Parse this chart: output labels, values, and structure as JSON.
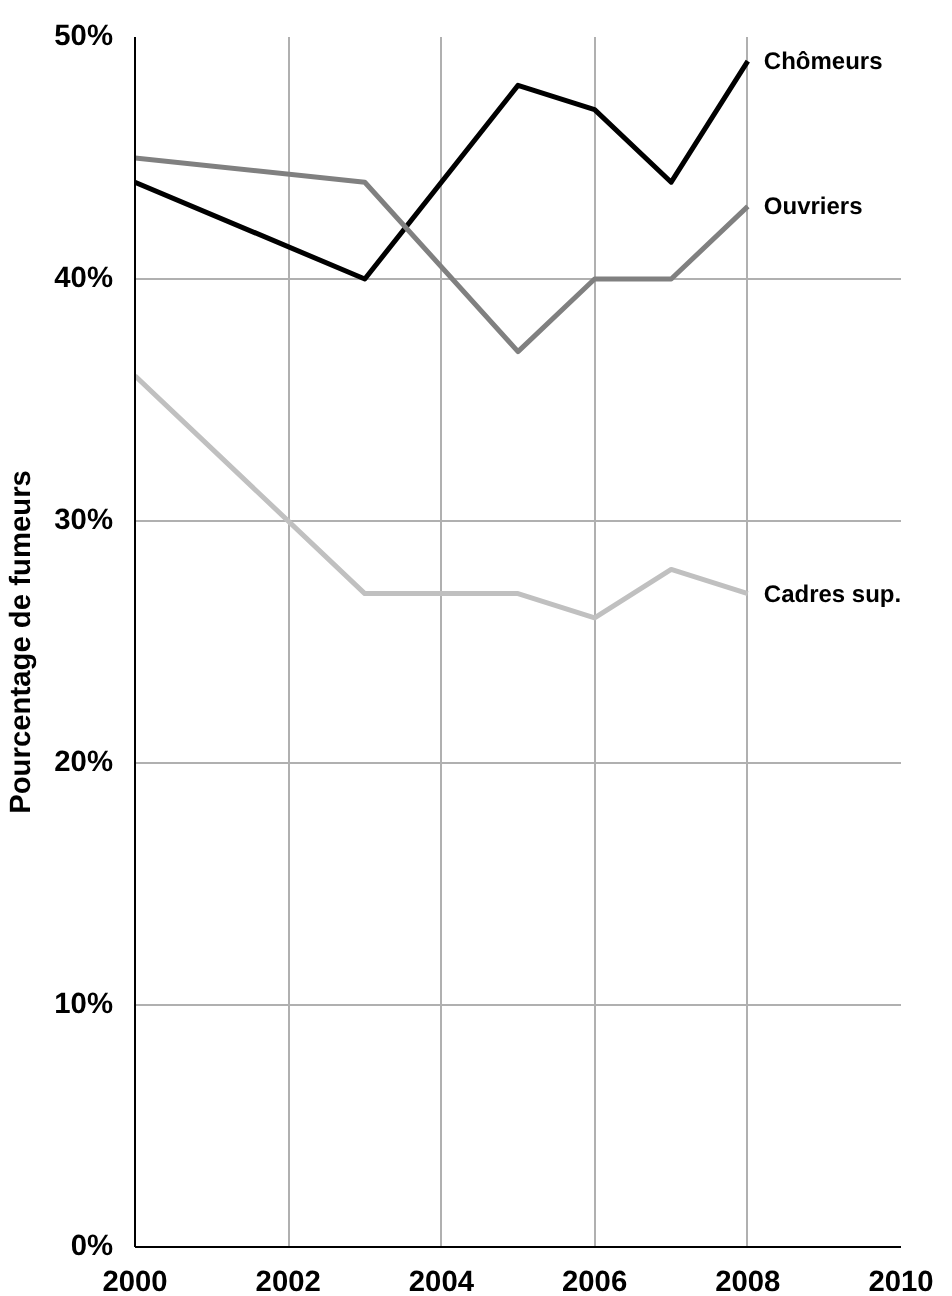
{
  "chart_data": {
    "type": "line",
    "ylabel": "Pourcentage de fumeurs",
    "x": [
      2000,
      2003,
      2005,
      2006,
      2007,
      2008
    ],
    "series": [
      {
        "name": "Chômeurs",
        "color": "#000000",
        "values": [
          44,
          40,
          48,
          47,
          44,
          49
        ]
      },
      {
        "name": "Ouvriers",
        "color": "#808080",
        "values": [
          45,
          44,
          37,
          40,
          40,
          43
        ]
      },
      {
        "name": "Cadres sup.",
        "color": "#c0c0c0",
        "values": [
          36,
          27,
          27,
          26,
          28,
          27
        ]
      }
    ],
    "xlim": [
      2000,
      2010
    ],
    "xticks": [
      2000,
      2002,
      2004,
      2006,
      2008,
      2010
    ],
    "ylim": [
      0,
      50
    ],
    "yticks": [
      {
        "value": 0,
        "label": "0%"
      },
      {
        "value": 10,
        "label": "10%"
      },
      {
        "value": 20,
        "label": "20%"
      },
      {
        "value": 30,
        "label": "30%"
      },
      {
        "value": 40,
        "label": "40%"
      },
      {
        "value": 50,
        "label": "50%"
      }
    ],
    "grid": true,
    "marker": "none",
    "line_style": "solid"
  }
}
